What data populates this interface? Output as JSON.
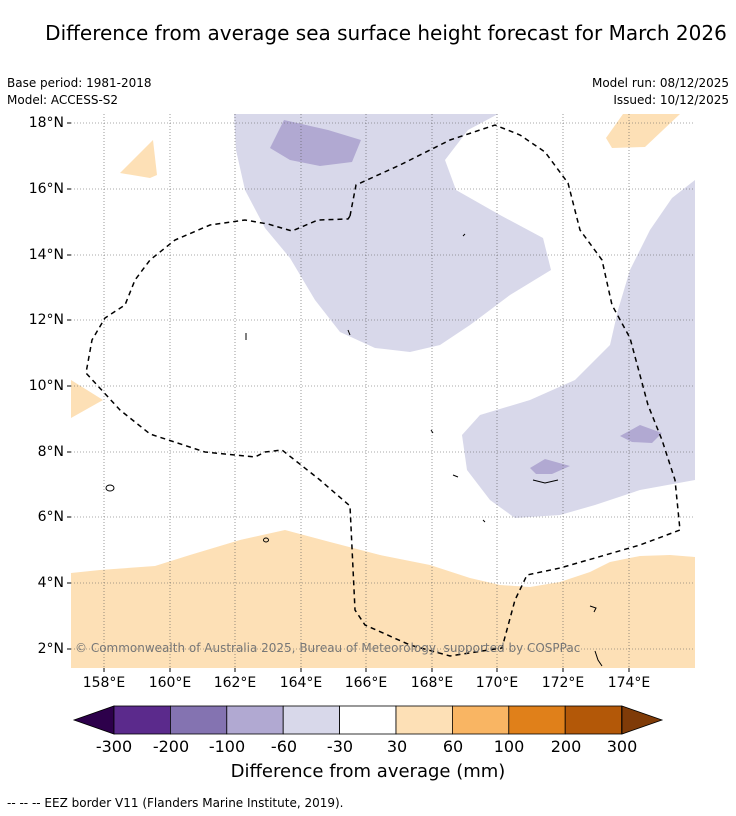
{
  "title": "Difference from average sea surface height forecast for March 2026",
  "meta_left": {
    "base_period": "Base period: 1981-2018",
    "model": "Model: ACCESS-S2"
  },
  "meta_right": {
    "model_run": "Model run: 08/12/2025",
    "issued": "Issued: 10/12/2025"
  },
  "axis": {
    "lat_ticks": [
      "18°N",
      "16°N",
      "14°N",
      "12°N",
      "10°N",
      "8°N",
      "6°N",
      "4°N",
      "2°N"
    ],
    "lon_ticks": [
      "158°E",
      "160°E",
      "162°E",
      "164°E",
      "166°E",
      "168°E",
      "170°E",
      "172°E",
      "174°E"
    ]
  },
  "colorbar": {
    "labels": [
      "-300",
      "-200",
      "-100",
      "-60",
      "-30",
      "30",
      "60",
      "100",
      "200",
      "300"
    ],
    "colors": [
      "#5b2a8c",
      "#8473b1",
      "#b1a9d2",
      "#d8d8ea",
      "#ffffff",
      "#fde0b6",
      "#f9b563",
      "#e0801a",
      "#b35808"
    ],
    "extend_low": "#2d004b",
    "extend_high": "#7f3b08",
    "title": "Difference from average (mm)"
  },
  "copyright": "© Commonwealth of Australia 2025, Bureau of Meteorology, supported by COSPPac",
  "footnote": "--  --  -- EEZ border V11 (Flanders Marine Institute, 2019)."
}
